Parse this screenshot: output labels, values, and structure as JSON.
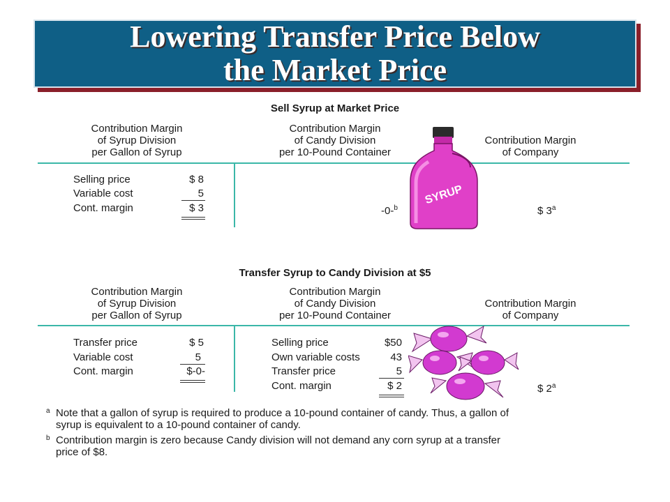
{
  "title": {
    "line1": "Lowering Transfer Price Below",
    "line2": "the Market Price"
  },
  "section1": {
    "heading": "Sell Syrup at Market Price",
    "col1_head": [
      "Contribution Margin",
      "of Syrup Division",
      "per Gallon of Syrup"
    ],
    "col2_head": [
      "Contribution Margin",
      "of Candy Division",
      "per 10-Pound Container"
    ],
    "col3_head": [
      "Contribution Margin",
      "of Company"
    ],
    "syrup_rows": [
      {
        "label": "Selling price",
        "value": "$ 8"
      },
      {
        "label": "Variable cost",
        "value": "5"
      },
      {
        "label": "Cont. margin",
        "value": "$ 3"
      }
    ],
    "candy_value": "-0-",
    "candy_sup": "b",
    "company_value": "$ 3",
    "company_sup": "a",
    "bottle_label": "SYRUP"
  },
  "section2": {
    "heading": "Transfer Syrup to Candy Division at $5",
    "col1_head": [
      "Contribution Margin",
      "of Syrup Division",
      "per Gallon of Syrup"
    ],
    "col2_head": [
      "Contribution Margin",
      "of Candy Division",
      "per 10-Pound Container"
    ],
    "col3_head": [
      "Contribution Margin",
      "of Company"
    ],
    "syrup_rows": [
      {
        "label": "Transfer price",
        "value": "$ 5"
      },
      {
        "label": "Variable cost",
        "value": "5"
      },
      {
        "label": "Cont. margin",
        "value": "$-0-"
      }
    ],
    "candy_rows": [
      {
        "label": "Selling price",
        "value": "$50"
      },
      {
        "label": "Own variable costs",
        "value": "43"
      },
      {
        "label": "Transfer price",
        "value": "5"
      },
      {
        "label": "Cont. margin",
        "value": "$ 2"
      }
    ],
    "company_value": "$ 2",
    "company_sup": "a"
  },
  "notes": [
    {
      "mark": "a",
      "lines": [
        "Note that a gallon of syrup is required to produce a 10-pound container of candy. Thus, a gallon of",
        "syrup is equivalent to a 10-pound container of candy."
      ]
    },
    {
      "mark": "b",
      "lines": [
        "Contribution margin is zero because Candy division will not demand any corn syrup at a transfer",
        "price of $8."
      ]
    }
  ],
  "colors": {
    "title_bg": "#0f5f86",
    "title_shadow": "#8a1f2a",
    "rule": "#3bb7a8",
    "bottle": "#e040c8",
    "candy": "#d23ad0"
  }
}
